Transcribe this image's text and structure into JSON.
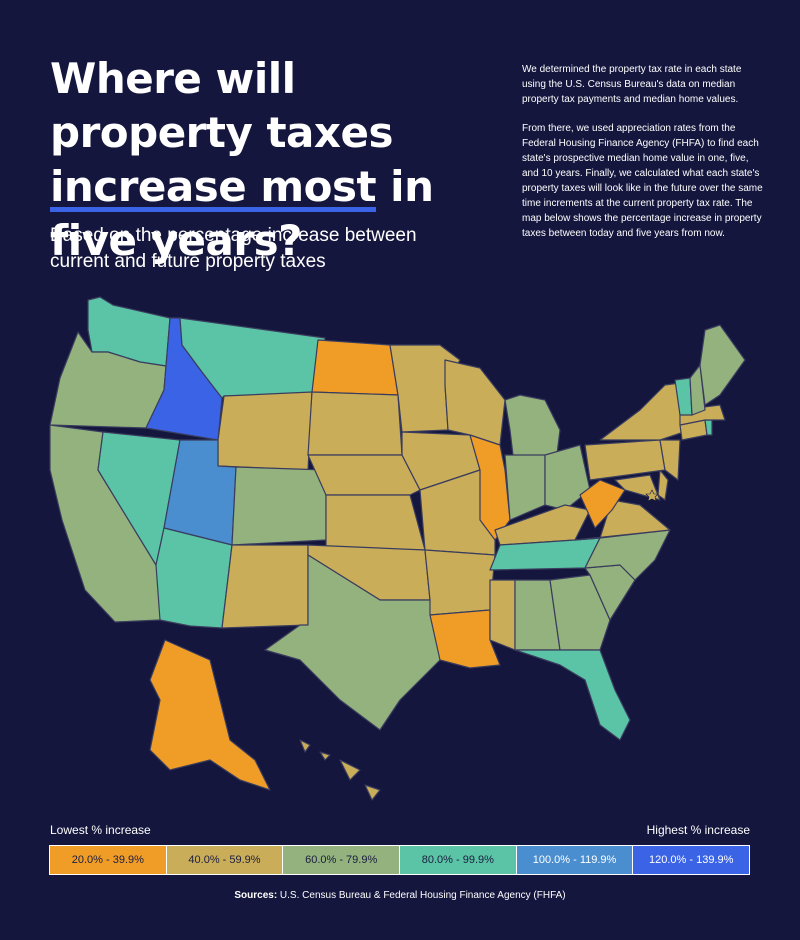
{
  "header": {
    "title_part1": "Where will property taxes ",
    "title_highlight": "increase most",
    "title_part2": " in five years?",
    "subtitle": "Based on the percentage increase between current and future property taxes"
  },
  "methodology": [
    "We determined the property tax rate in each state using the U.S. Census Bureau's data on median property tax payments and median home values.",
    "From there, we used appreciation rates from the Federal Housing Finance Agency (FHFA) to find each state's prospective median home value in one, five, and 10 years. Finally, we calculated what each state's property taxes will look like in the future over the same time increments at the current property tax rate. The map below shows the percentage increase in property taxes between today and five years from now."
  ],
  "legend": {
    "low_label": "Lowest % increase",
    "high_label": "Highest % increase",
    "bins": [
      {
        "label": "20.0% - 39.9%",
        "color": "#f09d28"
      },
      {
        "label": "40.0% - 59.9%",
        "color": "#c9ad59"
      },
      {
        "label": "60.0% - 79.9%",
        "color": "#93b27d"
      },
      {
        "label": "80.0% - 99.9%",
        "color": "#5bc4a6"
      },
      {
        "label": "100.0% - 119.9%",
        "color": "#4a8ed0"
      },
      {
        "label": "120.0% - 139.9%",
        "color": "#3a63e6"
      }
    ]
  },
  "map": {
    "states": {
      "WA": 3,
      "OR": 2,
      "CA": 2,
      "ID": 5,
      "NV": 3,
      "MT": 3,
      "WY": 1,
      "UT": 4,
      "AZ": 3,
      "CO": 2,
      "NM": 1,
      "ND": 0,
      "SD": 1,
      "NE": 1,
      "KS": 1,
      "OK": 1,
      "TX": 2,
      "MN": 1,
      "IA": 1,
      "MO": 1,
      "AR": 1,
      "LA": 0,
      "WI": 1,
      "IL": 0,
      "MI": 2,
      "IN": 2,
      "OH": 2,
      "KY": 1,
      "TN": 3,
      "MS": 1,
      "AL": 2,
      "GA": 2,
      "FL": 3,
      "SC": 2,
      "NC": 2,
      "VA": 1,
      "WV": 0,
      "MD": 1,
      "DE": 1,
      "PA": 1,
      "NJ": 1,
      "NY": 1,
      "CT": 1,
      "RI": 3,
      "MA": 1,
      "VT": 3,
      "NH": 2,
      "ME": 2,
      "AK": 0,
      "HI": 1
    }
  },
  "sources": {
    "label": "Sources:",
    "text": " U.S. Census Bureau & Federal Housing Finance Agency (FHFA)"
  }
}
